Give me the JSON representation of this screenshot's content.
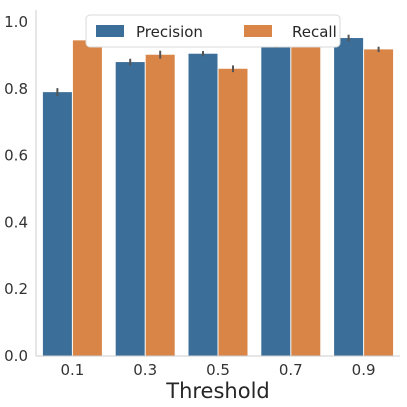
{
  "chart_data": {
    "type": "bar",
    "title": "",
    "xlabel": "Threshold",
    "ylabel": "",
    "categories": [
      "0.1",
      "0.3",
      "0.5",
      "0.7",
      "0.9"
    ],
    "series": [
      {
        "name": "Precision",
        "color": "#3b6e98",
        "values": [
          0.79,
          0.88,
          0.905,
          0.932,
          0.952
        ],
        "errors": [
          0.012,
          0.01,
          0.008,
          0.01,
          0.01
        ]
      },
      {
        "name": "Recall",
        "color": "#d98547",
        "values": [
          0.945,
          0.902,
          0.86,
          0.937,
          0.918
        ],
        "errors": [
          0.006,
          0.012,
          0.01,
          0.008,
          0.008
        ]
      }
    ],
    "ylim": [
      0,
      1.0
    ],
    "yticks": [
      "0.0",
      "0.2",
      "0.4",
      "0.6",
      "0.8",
      "1.0"
    ],
    "legend": {
      "position": "top-center",
      "columns": 2
    },
    "grid": false,
    "error_bar_color": "#555555"
  }
}
